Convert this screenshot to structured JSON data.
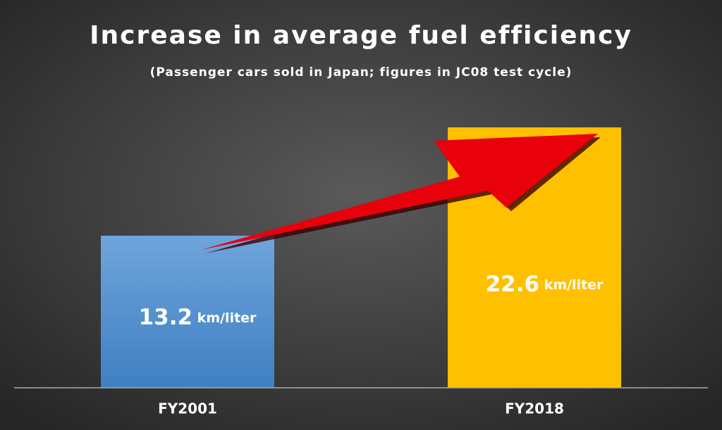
{
  "chart_data": {
    "type": "bar",
    "title": "Increase in average fuel efficiency",
    "subtitle": "(Passenger cars sold in Japan; figures in JC08 test cycle)",
    "categories": [
      "FY2001",
      "FY2018"
    ],
    "values": [
      13.2,
      22.6
    ],
    "value_labels": [
      "13.2 km/liter",
      "22.6 km/liter"
    ],
    "colors": [
      "#5b9bd5",
      "#ffc000"
    ]
  }
}
